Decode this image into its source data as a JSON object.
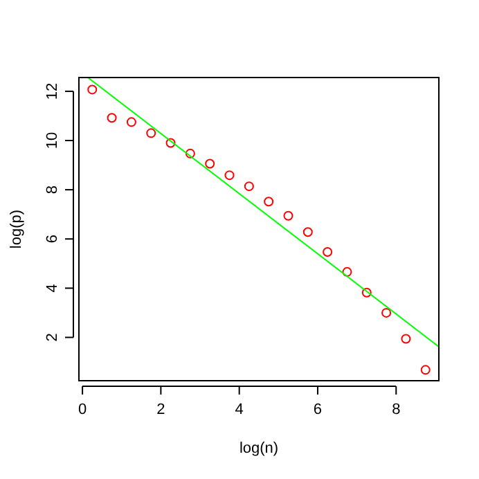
{
  "chart_data": {
    "type": "scatter",
    "xlabel": "log(n)",
    "ylabel": "log(p)",
    "xlim": [
      -0.09,
      9.09
    ],
    "ylim": [
      0.24,
      12.56
    ],
    "xticks": [
      0,
      2,
      4,
      6,
      8
    ],
    "yticks": [
      2,
      4,
      6,
      8,
      10,
      12
    ],
    "grid": false,
    "series": [
      {
        "color": "#ff0000",
        "marker": "circle",
        "x": [
          0.25,
          0.75,
          1.25,
          1.75,
          2.25,
          2.75,
          3.25,
          3.75,
          4.25,
          4.75,
          5.25,
          5.75,
          6.25,
          6.75,
          7.25,
          7.75,
          8.25,
          8.75
        ],
        "values": [
          12.07,
          10.92,
          10.75,
          10.3,
          9.9,
          9.47,
          9.06,
          8.59,
          8.14,
          7.52,
          6.94,
          6.28,
          5.47,
          4.66,
          3.82,
          3.0,
          1.94,
          0.68
        ]
      },
      {
        "type": "line",
        "color": "#00ff00",
        "marker": "none",
        "line_style": "solid",
        "x": [
          0.14,
          9.09
        ],
        "values": [
          12.56,
          1.62
        ]
      }
    ]
  }
}
